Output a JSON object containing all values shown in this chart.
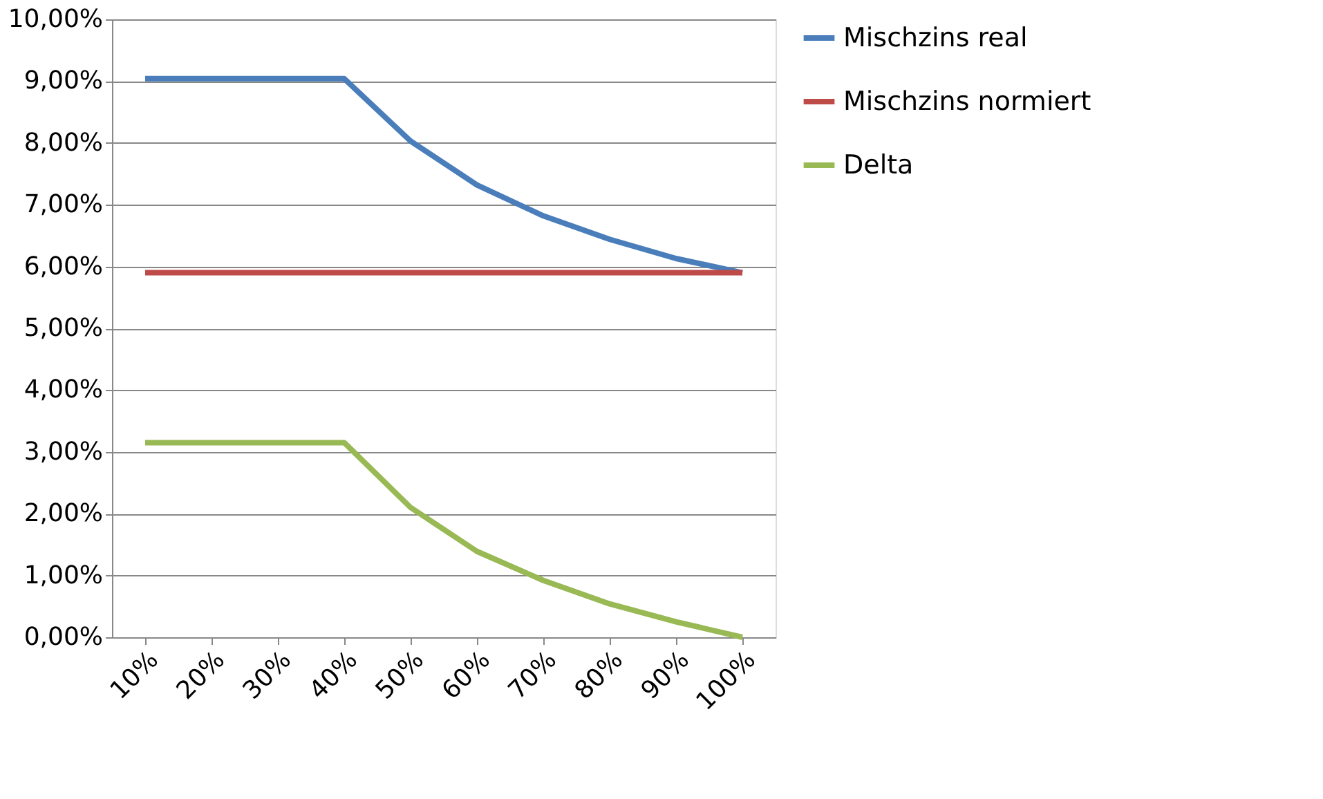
{
  "chart_data": {
    "type": "line",
    "categories": [
      "10%",
      "20%",
      "30%",
      "40%",
      "50%",
      "60%",
      "70%",
      "80%",
      "90%",
      "100%"
    ],
    "series": [
      {
        "name": "Mischzins real",
        "color": "#4a7ebb",
        "values": [
          9.04,
          9.04,
          9.04,
          9.04,
          8.03,
          7.32,
          6.82,
          6.44,
          6.13,
          5.9
        ]
      },
      {
        "name": "Mischzins normiert",
        "color": "#be4b48",
        "values": [
          5.9,
          5.9,
          5.9,
          5.9,
          5.9,
          5.9,
          5.9,
          5.9,
          5.9,
          5.9
        ]
      },
      {
        "name": "Delta",
        "color": "#98b954",
        "values": [
          3.15,
          3.15,
          3.15,
          3.15,
          2.1,
          1.39,
          0.92,
          0.54,
          0.25,
          0.0
        ]
      }
    ],
    "ylim": [
      0,
      10
    ],
    "yticks": [
      {
        "value": 0,
        "label": "0,00%"
      },
      {
        "value": 1,
        "label": "1,00%"
      },
      {
        "value": 2,
        "label": "2,00%"
      },
      {
        "value": 3,
        "label": "3,00%"
      },
      {
        "value": 4,
        "label": "4,00%"
      },
      {
        "value": 5,
        "label": "5,00%"
      },
      {
        "value": 6,
        "label": "6,00%"
      },
      {
        "value": 7,
        "label": "7,00%"
      },
      {
        "value": 8,
        "label": "8,00%"
      },
      {
        "value": 9,
        "label": "9,00%"
      },
      {
        "value": 10,
        "label": "10,00%"
      }
    ],
    "grid": "y",
    "legend": "right",
    "marker": "none",
    "line_style": "solid"
  }
}
